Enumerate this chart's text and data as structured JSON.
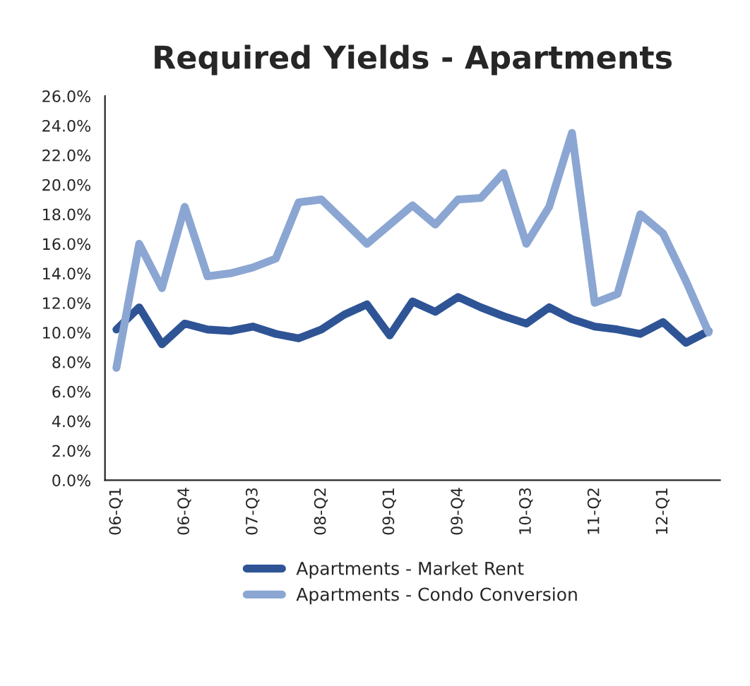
{
  "chart_data": {
    "type": "line",
    "title": "Required Yields - Apartments",
    "categories": [
      "06-Q1",
      null,
      null,
      "06-Q4",
      null,
      null,
      "07-Q3",
      null,
      null,
      "08-Q2",
      null,
      null,
      "09-Q1",
      null,
      null,
      "09-Q4",
      null,
      null,
      "10-Q3",
      null,
      null,
      "11-Q2",
      null,
      null,
      "12-Q1",
      null,
      null
    ],
    "series": [
      {
        "name": "Apartments - Market Rent",
        "color": "#2e5496",
        "values": [
          10.2,
          11.7,
          9.2,
          10.6,
          10.2,
          10.1,
          10.4,
          9.9,
          9.6,
          10.2,
          11.2,
          11.9,
          9.8,
          12.1,
          11.4,
          12.4,
          11.7,
          11.1,
          10.6,
          11.7,
          10.9,
          10.4,
          10.2,
          9.9,
          10.7,
          9.3,
          10.1
        ]
      },
      {
        "name": "Apartments - Condo Conversion",
        "color": "#8ba6d2",
        "values": [
          7.6,
          16.0,
          13.0,
          18.5,
          13.8,
          14.0,
          14.4,
          15.0,
          18.8,
          19.0,
          17.5,
          16.0,
          17.3,
          18.6,
          17.3,
          19.0,
          19.1,
          20.8,
          16.0,
          18.5,
          23.5,
          12.0,
          12.6,
          18.0,
          16.7,
          13.5,
          10.0
        ]
      }
    ],
    "ylim": [
      0,
      26
    ],
    "yticks": [
      {
        "value": 0,
        "label": "0.0%"
      },
      {
        "value": 2,
        "label": "2.0%"
      },
      {
        "value": 4,
        "label": "4.0%"
      },
      {
        "value": 6,
        "label": "6.0%"
      },
      {
        "value": 8,
        "label": "8.0%"
      },
      {
        "value": 10,
        "label": "10.0%"
      },
      {
        "value": 12,
        "label": "12.0%"
      },
      {
        "value": 14,
        "label": "14.0%"
      },
      {
        "value": 16,
        "label": "16.0%"
      },
      {
        "value": 18,
        "label": "18.0%"
      },
      {
        "value": 20,
        "label": "20.0%"
      },
      {
        "value": 22,
        "label": "22.0%"
      },
      {
        "value": 24,
        "label": "24.0%"
      },
      {
        "value": 26,
        "label": "26.0%"
      }
    ],
    "grid": false,
    "legend": "bottom",
    "marker": "none",
    "line_style": "solid"
  }
}
